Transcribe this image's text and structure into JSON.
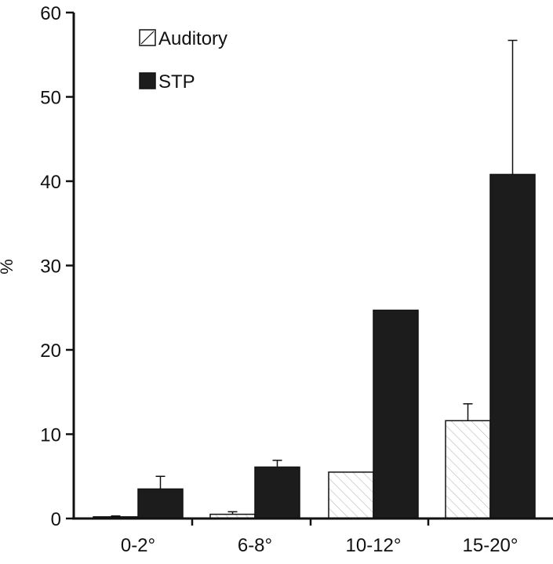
{
  "chart_data": {
    "type": "bar",
    "categories": [
      "0-2°",
      "6-8°",
      "10-12°",
      "15-20°"
    ],
    "series": [
      {
        "name": "Auditory",
        "values": [
          0.2,
          0.5,
          5.5,
          11.6
        ],
        "error": [
          0.1,
          0.3,
          0,
          2.0
        ],
        "pattern": "hatched"
      },
      {
        "name": "STP",
        "values": [
          3.5,
          6.1,
          24.7,
          40.8
        ],
        "error": [
          1.5,
          0.8,
          0,
          15.9
        ],
        "pattern": "solid"
      }
    ],
    "ylabel": "%",
    "xlabel": "",
    "ylim": [
      0,
      60
    ],
    "yticks": [
      "0",
      "10",
      "20",
      "30",
      "40",
      "50",
      "60"
    ],
    "grid": false,
    "legend_position": "top-left"
  },
  "colors": {
    "solid_bar": "#1c1c1c",
    "hatch_line": "#b8b8b8",
    "axis": "#111111"
  }
}
